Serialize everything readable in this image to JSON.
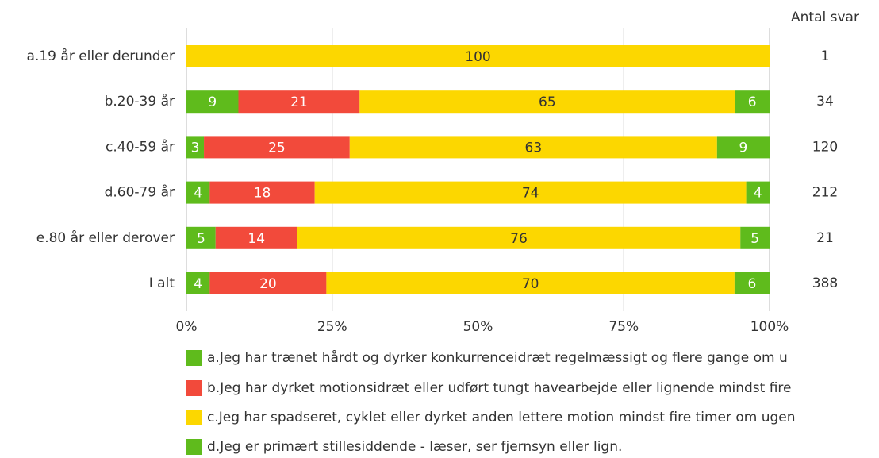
{
  "chart_data": {
    "type": "stacked_bar_horizontal",
    "stack": "percent",
    "categories": [
      "a.19 år eller derunder",
      "b.20-39 år",
      "c.40-59 år",
      "d.60-79 år",
      "e.80 år eller derover",
      "I alt"
    ],
    "series": [
      {
        "name": "a.Jeg har trænet hårdt og dyrker konkurrenceidræt regelmæssigt og flere gange om u",
        "color": "#5fbb1c",
        "label_color": "#ffffff",
        "values": [
          0,
          9,
          3,
          4,
          5,
          4
        ]
      },
      {
        "name": "b.Jeg har dyrket motionsidræt eller udført tungt havearbejde eller lignende mindst fire",
        "color": "#f24a3b",
        "label_color": "#ffffff",
        "values": [
          0,
          21,
          25,
          18,
          14,
          20
        ]
      },
      {
        "name": "c.Jeg har spadseret, cyklet eller dyrket anden lettere motion mindst fire timer om ugen",
        "color": "#fcd700",
        "label_color": "#333333",
        "values": [
          100,
          65,
          63,
          74,
          76,
          70
        ]
      },
      {
        "name": "d.Jeg er primært stillesiddende - læser, ser fjernsyn eller lign.",
        "color": "#5fbb1c",
        "label_color": "#ffffff",
        "values": [
          0,
          6,
          9,
          4,
          5,
          6
        ]
      }
    ],
    "counts_title": "Antal svar",
    "counts": [
      1,
      34,
      120,
      212,
      21,
      388
    ],
    "xlim": [
      0,
      100
    ],
    "xticks": [
      {
        "value": 0,
        "label": "0%"
      },
      {
        "value": 25,
        "label": "25%"
      },
      {
        "value": 50,
        "label": "50%"
      },
      {
        "value": 75,
        "label": "75%"
      },
      {
        "value": 100,
        "label": "100%"
      }
    ],
    "grid": true
  }
}
